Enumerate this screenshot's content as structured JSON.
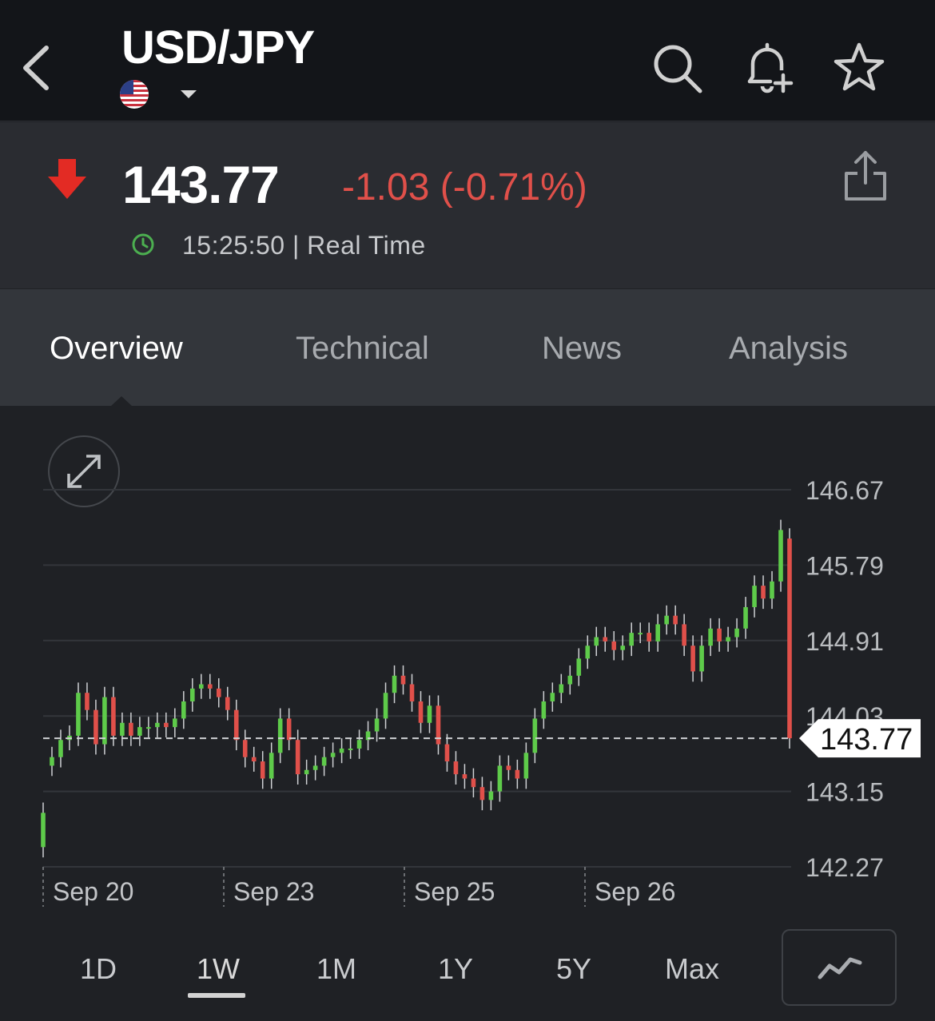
{
  "header": {
    "title": "USD/JPY",
    "icons": [
      "chevron-left-icon",
      "us-flag-icon",
      "caret-down-icon",
      "search-icon",
      "bell-plus-icon",
      "star-icon"
    ]
  },
  "quote": {
    "price": "143.77",
    "change": "-1.03 (-0.71%)",
    "time": "15:25:50 | Real Time",
    "colors": {
      "down": "#e0504a",
      "up": "#5ecb4a",
      "clock": "#4caf50"
    }
  },
  "tabs": [
    {
      "label": "Overview",
      "active": true
    },
    {
      "label": "Technical",
      "active": false
    },
    {
      "label": "News",
      "active": false
    },
    {
      "label": "Analysis",
      "active": false
    }
  ],
  "chart_data": {
    "type": "candlestick",
    "y_ticks": [
      "146.67",
      "145.79",
      "144.91",
      "144.03",
      "143.15",
      "142.27"
    ],
    "ylim": [
      142.27,
      146.67
    ],
    "x_ticks": [
      "Sep 20",
      "Sep 23",
      "Sep 25",
      "Sep 26"
    ],
    "last_price": 143.77,
    "last_price_label": "143.77",
    "grid": true,
    "series_close": [
      142.9,
      143.55,
      143.75,
      143.8,
      144.3,
      144.1,
      143.7,
      144.25,
      143.8,
      143.95,
      143.8,
      143.9,
      143.9,
      143.95,
      143.9,
      144.0,
      144.2,
      144.35,
      144.4,
      144.35,
      144.25,
      144.1,
      143.75,
      143.55,
      143.5,
      143.3,
      143.6,
      144.0,
      143.75,
      143.35,
      143.4,
      143.45,
      143.55,
      143.6,
      143.65,
      143.65,
      143.75,
      143.85,
      144.0,
      144.3,
      144.5,
      144.4,
      144.2,
      143.95,
      144.15,
      143.7,
      143.5,
      143.35,
      143.3,
      143.2,
      143.05,
      143.15,
      143.45,
      143.4,
      143.3,
      143.6,
      144.0,
      144.2,
      144.3,
      144.4,
      144.5,
      144.7,
      144.85,
      144.95,
      144.9,
      144.8,
      144.85,
      145.0,
      145.0,
      144.9,
      145.1,
      145.2,
      145.1,
      144.85,
      144.55,
      144.85,
      145.05,
      144.9,
      144.95,
      145.05,
      145.3,
      145.55,
      145.4,
      145.6,
      146.2,
      143.77
    ],
    "series_open": [
      142.5,
      143.45,
      143.55,
      143.75,
      143.8,
      144.3,
      144.1,
      143.7,
      144.25,
      143.8,
      143.95,
      143.8,
      143.9,
      143.9,
      143.95,
      143.9,
      144.0,
      144.2,
      144.35,
      144.4,
      144.35,
      144.25,
      144.1,
      143.75,
      143.55,
      143.5,
      143.3,
      143.6,
      144.0,
      143.75,
      143.35,
      143.4,
      143.45,
      143.55,
      143.6,
      143.65,
      143.65,
      143.75,
      143.85,
      144.0,
      144.3,
      144.5,
      144.4,
      144.2,
      143.95,
      144.15,
      143.7,
      143.5,
      143.35,
      143.3,
      143.2,
      143.05,
      143.15,
      143.45,
      143.4,
      143.3,
      143.6,
      144.0,
      144.2,
      144.3,
      144.4,
      144.5,
      144.7,
      144.85,
      144.95,
      144.9,
      144.8,
      144.85,
      145.0,
      145.0,
      144.9,
      145.1,
      145.2,
      145.1,
      144.85,
      144.55,
      144.85,
      145.05,
      144.9,
      144.95,
      145.05,
      145.3,
      145.55,
      145.4,
      145.6,
      146.1
    ]
  },
  "ranges": [
    {
      "label": "1D",
      "active": false
    },
    {
      "label": "1W",
      "active": true
    },
    {
      "label": "1M",
      "active": false
    },
    {
      "label": "1Y",
      "active": false
    },
    {
      "label": "5Y",
      "active": false
    },
    {
      "label": "Max",
      "active": false
    }
  ],
  "chart_type_icon": "line-chart-icon",
  "expand_icon": "expand-icon"
}
